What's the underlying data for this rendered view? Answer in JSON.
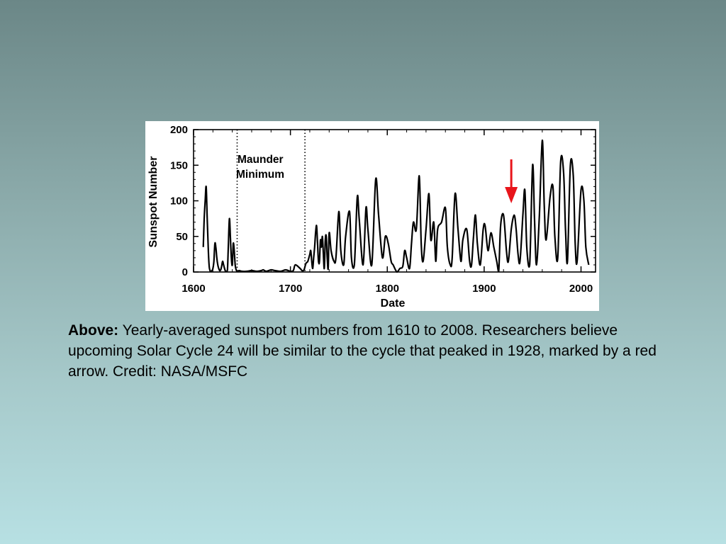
{
  "chart_data": {
    "type": "line",
    "xlabel": "Date",
    "ylabel": "Sunspot Number",
    "xlim": [
      1600,
      2015
    ],
    "ylim": [
      0,
      200
    ],
    "x_ticks": [
      1600,
      1700,
      1800,
      1900,
      2000
    ],
    "y_ticks": [
      0,
      50,
      100,
      150,
      200
    ],
    "grid": false,
    "series": [
      {
        "color": "#000000",
        "x": [
          1610,
          1611,
          1612,
          1613,
          1614,
          1615,
          1616,
          1617,
          1618,
          1619,
          1620,
          1621,
          1622,
          1623,
          1624,
          1625,
          1626,
          1627,
          1628,
          1629,
          1630,
          1631,
          1632,
          1633,
          1634,
          1635,
          1636,
          1637,
          1638,
          1639,
          1640,
          1641,
          1642,
          1643,
          1644,
          1645,
          1646,
          1647,
          1650,
          1655,
          1660,
          1665,
          1670,
          1672,
          1675,
          1680,
          1684,
          1690,
          1695,
          1700,
          1703,
          1705,
          1710,
          1712,
          1714,
          1716,
          1718,
          1720,
          1721,
          1722,
          1723,
          1724,
          1725,
          1726,
          1727,
          1728,
          1729,
          1730,
          1731,
          1732,
          1733,
          1734,
          1735,
          1736,
          1737,
          1738,
          1739,
          1740,
          1742,
          1745,
          1747,
          1750,
          1752,
          1755,
          1757,
          1761,
          1763,
          1766,
          1769,
          1771,
          1775,
          1778,
          1780,
          1784,
          1788,
          1791,
          1795,
          1798,
          1801,
          1804,
          1806,
          1810,
          1813,
          1816,
          1818,
          1820,
          1823,
          1825,
          1827,
          1830,
          1833,
          1835,
          1837,
          1840,
          1843,
          1845,
          1848,
          1850,
          1852,
          1856,
          1860,
          1862,
          1865,
          1867,
          1870,
          1873,
          1876,
          1878,
          1882,
          1885,
          1887,
          1889,
          1891,
          1893,
          1896,
          1899,
          1901,
          1904,
          1907,
          1910,
          1913,
          1915,
          1917,
          1920,
          1923,
          1925,
          1928,
          1931,
          1933,
          1935,
          1937,
          1940,
          1942,
          1944,
          1947,
          1950,
          1952,
          1954,
          1957,
          1960,
          1962,
          1964,
          1968,
          1971,
          1973,
          1976,
          1979,
          1982,
          1984,
          1986,
          1989,
          1992,
          1994,
          1996,
          2000,
          2003,
          2005,
          2008
        ],
        "values": [
          35,
          75,
          100,
          120,
          80,
          40,
          10,
          2,
          1,
          2,
          5,
          15,
          40,
          35,
          20,
          10,
          5,
          2,
          3,
          8,
          15,
          10,
          5,
          1,
          1,
          3,
          40,
          75,
          50,
          20,
          10,
          40,
          30,
          10,
          3,
          1,
          1,
          2,
          1,
          1,
          2,
          1,
          2,
          3,
          1,
          3,
          2,
          1,
          3,
          1,
          2,
          10,
          5,
          2,
          3,
          12,
          15,
          25,
          30,
          15,
          5,
          20,
          35,
          55,
          65,
          40,
          15,
          15,
          45,
          35,
          50,
          25,
          5,
          45,
          50,
          20,
          5,
          55,
          30,
          15,
          20,
          85,
          30,
          10,
          50,
          85,
          20,
          10,
          105,
          75,
          10,
          90,
          60,
          10,
          130,
          80,
          20,
          50,
          40,
          15,
          10,
          0,
          5,
          8,
          30,
          20,
          5,
          40,
          70,
          60,
          135,
          40,
          15,
          60,
          110,
          45,
          70,
          15,
          60,
          70,
          90,
          35,
          10,
          20,
          110,
          60,
          15,
          45,
          60,
          15,
          10,
          50,
          80,
          40,
          10,
          60,
          65,
          30,
          55,
          35,
          15,
          1,
          65,
          80,
          30,
          15,
          60,
          80,
          60,
          25,
          15,
          80,
          115,
          35,
          10,
          150,
          75,
          10,
          80,
          185,
          95,
          45,
          105,
          120,
          50,
          20,
          155,
          140,
          60,
          15,
          150,
          135,
          40,
          15,
          115,
          100,
          35,
          10
        ],
        "smoothed_display": true
      }
    ],
    "annotations": [
      {
        "type": "vline",
        "x": 1645,
        "style": "dotted"
      },
      {
        "type": "vline",
        "x": 1715,
        "style": "dotted"
      },
      {
        "type": "text",
        "lines": [
          "Maunder",
          "Minimum"
        ]
      },
      {
        "type": "arrow",
        "x": 1928,
        "color": "#e8151b"
      }
    ]
  },
  "caption": {
    "lead": "Above:",
    "text": " Yearly-averaged sunspot numbers from 1610 to 2008. Researchers believe upcoming Solar Cycle 24 will be similar to the cycle that peaked in 1928, marked by a red arrow. Credit: NASA/MSFC"
  }
}
